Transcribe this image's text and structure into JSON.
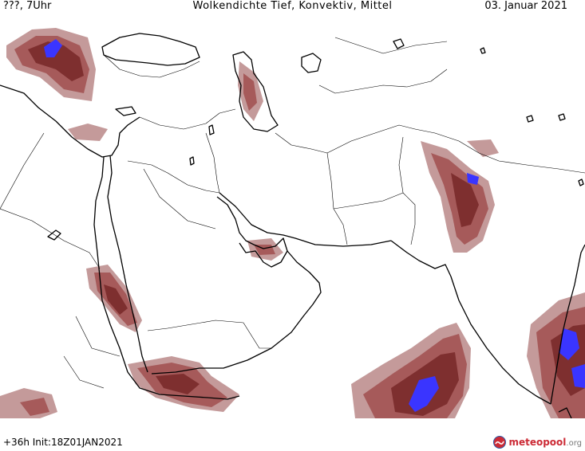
{
  "header": {
    "left": "???, 7Uhr",
    "center": "Wolkendichte   Tief, Konvektiv, Mittel",
    "right": "03. Januar 2021"
  },
  "footer": {
    "run": "+36h  Init:18Z01JAN2021",
    "brand_main": "meteopool",
    "brand_tld": ".org"
  },
  "legend_colors": {
    "light": "#c49a9a",
    "medium": "#a65a5a",
    "dense": "#7e2f2f",
    "peak": "#3a35ff"
  },
  "icons": {
    "brand_logo": "meteopool-logo-icon"
  }
}
